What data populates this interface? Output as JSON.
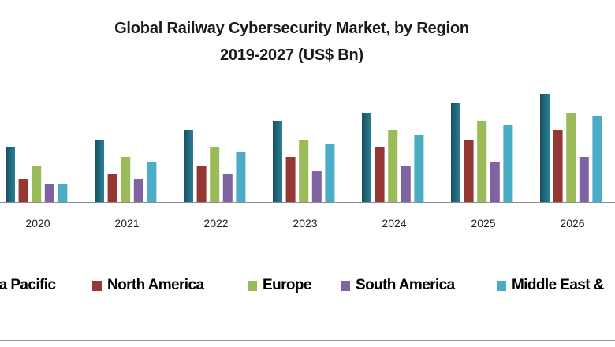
{
  "chart_data": {
    "type": "bar",
    "title": "Global Railway Cybersecurity Market, by Region",
    "subtitle": "2019-2027 (US$ Bn)",
    "categories": [
      "2020",
      "2021",
      "2022",
      "2023",
      "2024",
      "2025",
      "2026"
    ],
    "ylim": [
      0,
      14
    ],
    "grid": false,
    "legend_placement": "bottom",
    "series": [
      {
        "name": "Asia Pacific",
        "legend_visible_text": "ia Pacific",
        "color": "#1f6b80",
        "values": [
          6.9,
          7.9,
          9.1,
          10.3,
          11.3,
          12.5,
          13.7
        ]
      },
      {
        "name": "North America",
        "color": "#953735",
        "values": [
          2.9,
          3.5,
          4.5,
          5.7,
          6.9,
          7.9,
          9.1
        ]
      },
      {
        "name": "Europe",
        "color": "#9bbb59",
        "values": [
          4.5,
          5.7,
          6.9,
          7.9,
          9.1,
          10.3,
          11.3
        ]
      },
      {
        "name": "South America",
        "color": "#8064a2",
        "values": [
          2.3,
          2.9,
          3.5,
          3.9,
          4.5,
          5.1,
          5.7
        ]
      },
      {
        "name": "Middle East & Africa",
        "legend_visible_text": "Middle East &",
        "color": "#4bacc6",
        "values": [
          2.3,
          5.1,
          6.3,
          7.3,
          8.5,
          9.7,
          10.9
        ]
      }
    ]
  }
}
